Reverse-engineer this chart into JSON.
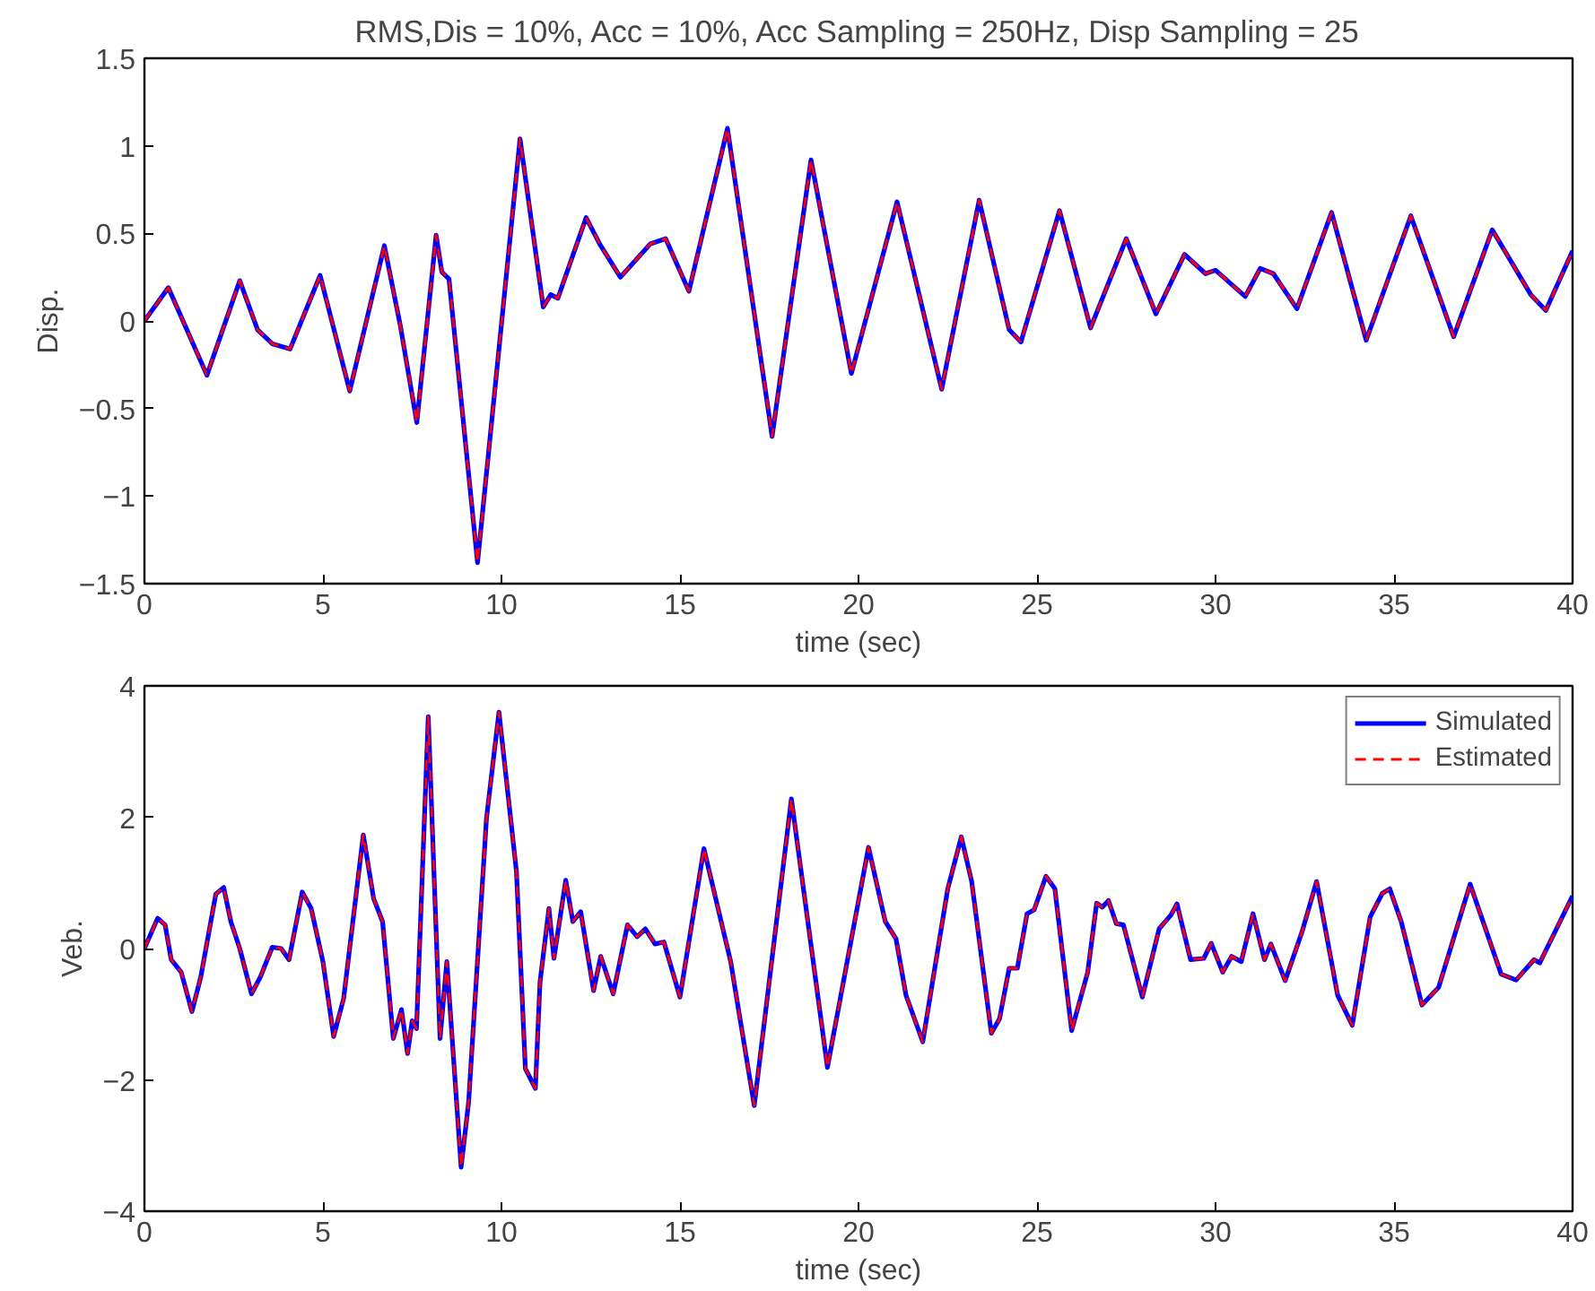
{
  "chart_data": [
    {
      "type": "line",
      "title": "RMS,Dis = 10%, Acc = 10%, Acc Sampling = 250Hz, Disp Sampling = 25",
      "xlabel": "time (sec)",
      "ylabel": "Disp.",
      "xlim": [
        0,
        40
      ],
      "xticks": [
        0,
        5,
        10,
        15,
        20,
        25,
        30,
        35,
        40
      ],
      "ylim": [
        -1.5,
        1.5
      ],
      "yticks": [
        {
          "value": -1.5,
          "label": "−1.5"
        },
        {
          "value": -1,
          "label": "−1"
        },
        {
          "value": -0.5,
          "label": "−0.5"
        },
        0,
        0.5,
        1,
        1.5
      ],
      "grid": false,
      "legend": false,
      "series": [
        {
          "color": "#0000ff",
          "line_style": "solid",
          "x": [
            0,
            0.67,
            1.75,
            2.67,
            3.17,
            3.58,
            4.08,
            4.92,
            5.75,
            6.72,
            7.17,
            7.63,
            8.17,
            8.33,
            8.53,
            9.33,
            10.52,
            11.17,
            11.38,
            11.58,
            12.37,
            12.75,
            13.33,
            14.17,
            14.6,
            15.25,
            16.33,
            17.58,
            18.67,
            19.8,
            21.08,
            22.33,
            23.38,
            24.22,
            24.55,
            25.63,
            26.5,
            27.5,
            28.33,
            29.13,
            29.72,
            30.0,
            30.83,
            31.25,
            31.62,
            32.28,
            33.25,
            34.22,
            35.47,
            36.67,
            37.75,
            38.83,
            39.25,
            40
          ],
          "values": [
            0,
            0.19,
            -0.31,
            0.23,
            -0.05,
            -0.13,
            -0.16,
            0.26,
            -0.4,
            0.43,
            -0.03,
            -0.58,
            0.49,
            0.28,
            0.24,
            -1.38,
            1.04,
            0.08,
            0.15,
            0.13,
            0.59,
            0.44,
            0.25,
            0.44,
            0.47,
            0.17,
            1.1,
            -0.66,
            0.92,
            -0.3,
            0.68,
            -0.39,
            0.69,
            -0.05,
            -0.12,
            0.63,
            -0.04,
            0.47,
            0.04,
            0.38,
            0.27,
            0.29,
            0.14,
            0.3,
            0.27,
            0.07,
            0.62,
            -0.11,
            0.6,
            -0.09,
            0.52,
            0.15,
            0.06,
            0.4
          ]
        },
        {
          "color": "#ff0000",
          "line_style": "dashed",
          "x": [
            0,
            0.67,
            1.75,
            2.67,
            3.17,
            3.58,
            4.08,
            4.92,
            5.75,
            6.72,
            7.17,
            7.63,
            8.17,
            8.33,
            8.53,
            9.33,
            10.52,
            11.17,
            11.38,
            11.58,
            12.37,
            12.75,
            13.33,
            14.17,
            14.6,
            15.25,
            16.33,
            17.58,
            18.67,
            19.8,
            21.08,
            22.33,
            23.38,
            24.22,
            24.55,
            25.63,
            26.5,
            27.5,
            28.33,
            29.13,
            29.72,
            30.0,
            30.83,
            31.25,
            31.62,
            32.28,
            33.25,
            34.22,
            35.47,
            36.67,
            37.75,
            38.83,
            39.25,
            40
          ],
          "values": [
            0,
            0.19,
            -0.31,
            0.23,
            -0.05,
            -0.13,
            -0.16,
            0.26,
            -0.4,
            0.43,
            -0.03,
            -0.58,
            0.49,
            0.28,
            0.24,
            -1.38,
            1.04,
            0.08,
            0.15,
            0.13,
            0.59,
            0.44,
            0.25,
            0.44,
            0.47,
            0.17,
            1.1,
            -0.66,
            0.92,
            -0.3,
            0.68,
            -0.39,
            0.69,
            -0.05,
            -0.12,
            0.63,
            -0.04,
            0.47,
            0.04,
            0.38,
            0.27,
            0.29,
            0.14,
            0.3,
            0.27,
            0.07,
            0.62,
            -0.11,
            0.6,
            -0.09,
            0.52,
            0.15,
            0.06,
            0.4
          ]
        }
      ]
    },
    {
      "type": "line",
      "xlabel": "time (sec)",
      "ylabel": "Veb.",
      "xlim": [
        0,
        40
      ],
      "xticks": [
        0,
        5,
        10,
        15,
        20,
        25,
        30,
        35,
        40
      ],
      "ylim": [
        -4,
        4
      ],
      "yticks": [
        {
          "value": -4,
          "label": "−4"
        },
        {
          "value": -2,
          "label": "−2"
        },
        0,
        2,
        4
      ],
      "grid": false,
      "legend": "top right",
      "series": [
        {
          "name": "Simulated",
          "color": "#0000ff",
          "line_style": "solid",
          "x": [
            0,
            0.37,
            0.58,
            0.75,
            1.03,
            1.33,
            1.58,
            2.0,
            2.22,
            2.42,
            2.67,
            3.0,
            3.25,
            3.58,
            3.83,
            4.05,
            4.42,
            4.67,
            5.0,
            5.3,
            5.58,
            6.13,
            6.42,
            6.67,
            6.97,
            7.2,
            7.37,
            7.5,
            7.62,
            7.95,
            8.28,
            8.47,
            8.87,
            9.08,
            9.58,
            9.93,
            10.42,
            10.67,
            10.95,
            11.08,
            11.33,
            11.47,
            11.8,
            12.0,
            12.22,
            12.58,
            12.78,
            13.13,
            13.53,
            13.8,
            14.03,
            14.3,
            14.55,
            15.0,
            15.67,
            16.42,
            17.08,
            18.12,
            19.13,
            20.28,
            20.75,
            21.05,
            21.33,
            21.8,
            22.5,
            22.88,
            23.17,
            23.72,
            23.95,
            24.22,
            24.45,
            24.72,
            24.92,
            25.25,
            25.5,
            25.97,
            26.42,
            26.67,
            26.83,
            27.0,
            27.22,
            27.42,
            27.95,
            28.42,
            28.75,
            28.92,
            29.3,
            29.67,
            29.88,
            30.2,
            30.45,
            30.72,
            31.05,
            31.37,
            31.55,
            31.95,
            32.42,
            32.83,
            33.42,
            33.83,
            34.33,
            34.67,
            34.88,
            35.2,
            35.78,
            36.25,
            37.13,
            38.0,
            38.42,
            38.92,
            39.08,
            40
          ],
          "values": [
            0,
            0.46,
            0.36,
            -0.17,
            -0.36,
            -0.96,
            -0.43,
            0.83,
            0.93,
            0.41,
            0,
            -0.69,
            -0.43,
            0.02,
            0,
            -0.17,
            0.86,
            0.61,
            -0.2,
            -1.34,
            -0.76,
            1.73,
            0.76,
            0.41,
            -1.37,
            -0.93,
            -1.6,
            -1.1,
            -1.22,
            3.53,
            -1.37,
            -0.2,
            -3.33,
            -2.34,
            1.98,
            3.6,
            1.17,
            -1.83,
            -2.13,
            -0.51,
            0.61,
            -0.15,
            1.04,
            0.41,
            0.56,
            -0.64,
            -0.12,
            -0.69,
            0.36,
            0.18,
            0.3,
            0.07,
            0.1,
            -0.74,
            1.52,
            -0.2,
            -2.39,
            2.28,
            -1.81,
            1.54,
            0.41,
            0.15,
            -0.71,
            -1.42,
            0.91,
            1.7,
            1.02,
            -1.29,
            -1.07,
            -0.3,
            -0.3,
            0.53,
            0.59,
            1.1,
            0.91,
            -1.25,
            -0.36,
            0.69,
            0.63,
            0.73,
            0.38,
            0.36,
            -0.74,
            0.3,
            0.51,
            0.68,
            -0.17,
            -0.15,
            0.08,
            -0.36,
            -0.12,
            -0.2,
            0.53,
            -0.17,
            0.07,
            -0.49,
            0.25,
            1.02,
            -0.71,
            -1.17,
            0.48,
            0.84,
            0.91,
            0.41,
            -0.86,
            -0.59,
            0.98,
            -0.39,
            -0.48,
            -0.17,
            -0.22,
            0.8
          ]
        },
        {
          "name": "Estimated",
          "color": "#ff0000",
          "line_style": "dashed",
          "x": [
            0,
            0.37,
            0.58,
            0.75,
            1.03,
            1.33,
            1.58,
            2.0,
            2.22,
            2.42,
            2.67,
            3.0,
            3.25,
            3.58,
            3.83,
            4.05,
            4.42,
            4.67,
            5.0,
            5.3,
            5.58,
            6.13,
            6.42,
            6.67,
            6.97,
            7.2,
            7.37,
            7.5,
            7.62,
            7.95,
            8.28,
            8.47,
            8.87,
            9.08,
            9.58,
            9.93,
            10.42,
            10.67,
            10.95,
            11.08,
            11.33,
            11.47,
            11.8,
            12.0,
            12.22,
            12.58,
            12.78,
            13.13,
            13.53,
            13.8,
            14.03,
            14.3,
            14.55,
            15.0,
            15.67,
            16.42,
            17.08,
            18.12,
            19.13,
            20.28,
            20.75,
            21.05,
            21.33,
            21.8,
            22.5,
            22.88,
            23.17,
            23.72,
            23.95,
            24.22,
            24.45,
            24.72,
            24.92,
            25.25,
            25.5,
            25.97,
            26.42,
            26.67,
            26.83,
            27.0,
            27.22,
            27.42,
            27.95,
            28.42,
            28.75,
            28.92,
            29.3,
            29.67,
            29.88,
            30.2,
            30.45,
            30.72,
            31.05,
            31.37,
            31.55,
            31.95,
            32.42,
            32.83,
            33.42,
            33.83,
            34.33,
            34.67,
            34.88,
            35.2,
            35.78,
            36.25,
            37.13,
            38.0,
            38.42,
            38.92,
            39.08,
            40
          ],
          "values": [
            0,
            0.46,
            0.36,
            -0.17,
            -0.36,
            -0.96,
            -0.43,
            0.83,
            0.93,
            0.41,
            0,
            -0.69,
            -0.43,
            0.02,
            0,
            -0.17,
            0.86,
            0.61,
            -0.2,
            -1.34,
            -0.76,
            1.73,
            0.76,
            0.41,
            -1.37,
            -0.93,
            -1.6,
            -1.1,
            -1.22,
            3.53,
            -1.37,
            -0.2,
            -3.33,
            -2.34,
            1.98,
            3.6,
            1.17,
            -1.83,
            -2.13,
            -0.51,
            0.61,
            -0.15,
            1.04,
            0.41,
            0.56,
            -0.64,
            -0.12,
            -0.69,
            0.36,
            0.18,
            0.3,
            0.07,
            0.1,
            -0.74,
            1.52,
            -0.2,
            -2.39,
            2.28,
            -1.81,
            1.54,
            0.41,
            0.15,
            -0.71,
            -1.42,
            0.91,
            1.7,
            1.02,
            -1.29,
            -1.07,
            -0.3,
            -0.3,
            0.53,
            0.59,
            1.1,
            0.91,
            -1.25,
            -0.36,
            0.69,
            0.63,
            0.73,
            0.38,
            0.36,
            -0.74,
            0.3,
            0.51,
            0.68,
            -0.17,
            -0.15,
            0.08,
            -0.36,
            -0.12,
            -0.2,
            0.53,
            -0.17,
            0.07,
            -0.49,
            0.25,
            1.02,
            -0.71,
            -1.17,
            0.48,
            0.84,
            0.91,
            0.41,
            -0.86,
            -0.59,
            0.98,
            -0.39,
            -0.48,
            -0.17,
            -0.22,
            0.8
          ]
        }
      ]
    }
  ]
}
